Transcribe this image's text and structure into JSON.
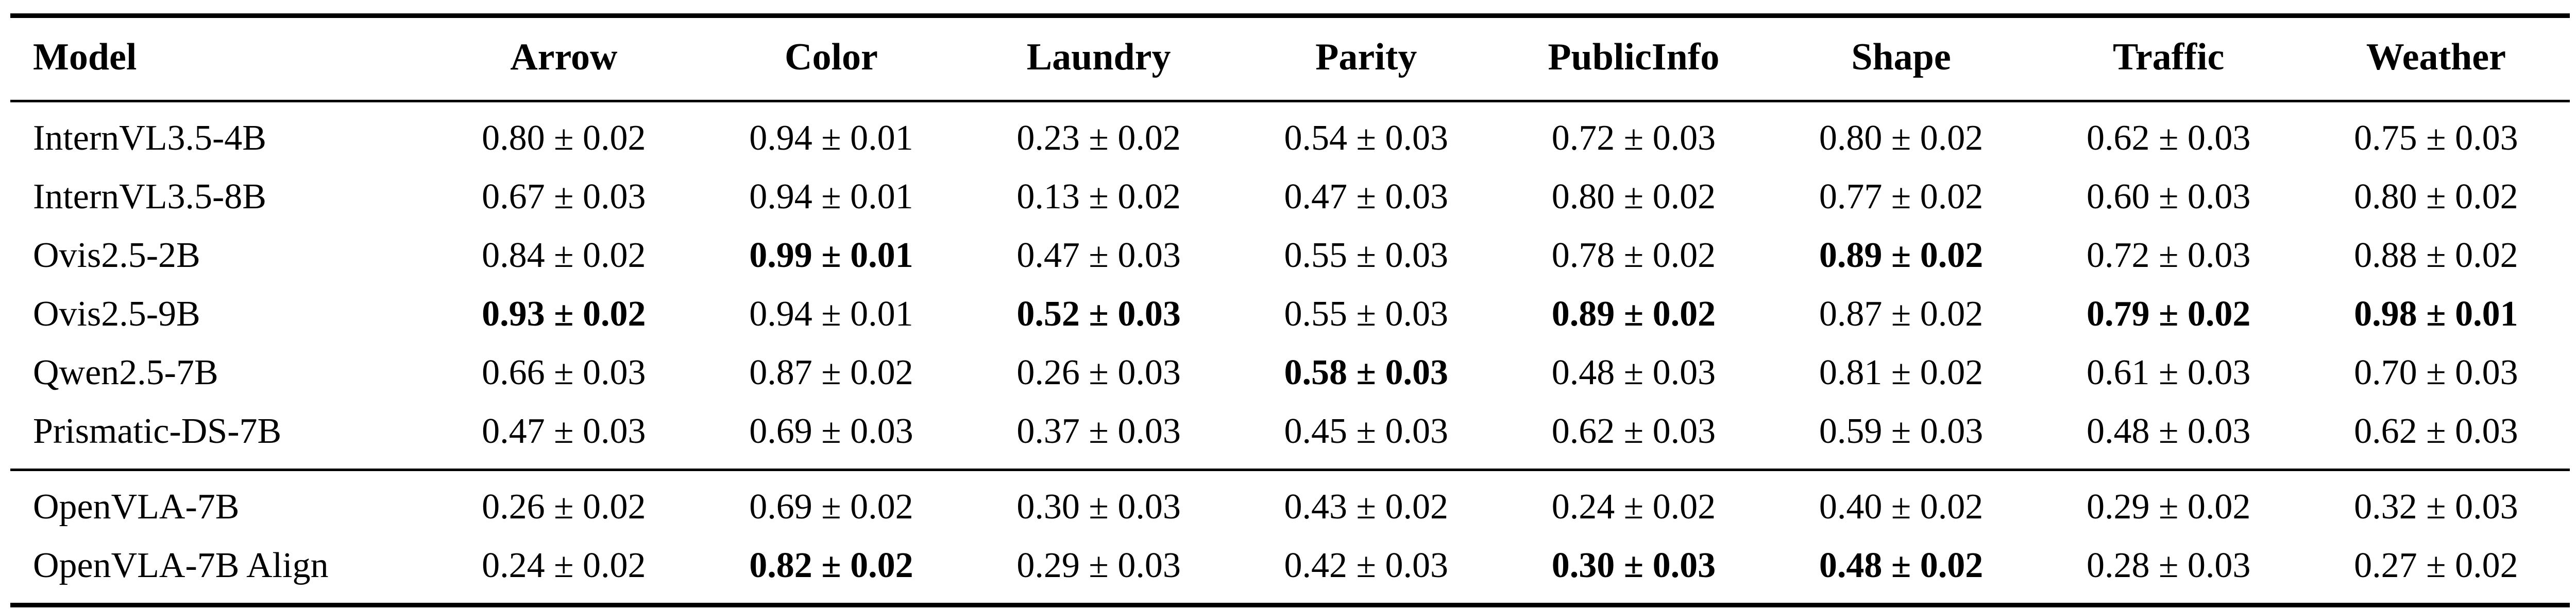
{
  "colors": {
    "text": "#000000",
    "background": "#ffffff",
    "rule": "#000000"
  },
  "table": {
    "columns": [
      "Model",
      "Arrow",
      "Color",
      "Laundry",
      "Parity",
      "PublicInfo",
      "Shape",
      "Traffic",
      "Weather"
    ],
    "groups": [
      {
        "rows": [
          {
            "model": "InternVL3.5-4B",
            "values": [
              {
                "v": "0.80 ± 0.02",
                "b": false
              },
              {
                "v": "0.94 ± 0.01",
                "b": false
              },
              {
                "v": "0.23 ± 0.02",
                "b": false
              },
              {
                "v": "0.54 ± 0.03",
                "b": false
              },
              {
                "v": "0.72 ± 0.03",
                "b": false
              },
              {
                "v": "0.80 ± 0.02",
                "b": false
              },
              {
                "v": "0.62 ± 0.03",
                "b": false
              },
              {
                "v": "0.75 ± 0.03",
                "b": false
              }
            ]
          },
          {
            "model": "InternVL3.5-8B",
            "values": [
              {
                "v": "0.67 ± 0.03",
                "b": false
              },
              {
                "v": "0.94 ± 0.01",
                "b": false
              },
              {
                "v": "0.13 ± 0.02",
                "b": false
              },
              {
                "v": "0.47 ± 0.03",
                "b": false
              },
              {
                "v": "0.80 ± 0.02",
                "b": false
              },
              {
                "v": "0.77 ± 0.02",
                "b": false
              },
              {
                "v": "0.60 ± 0.03",
                "b": false
              },
              {
                "v": "0.80 ± 0.02",
                "b": false
              }
            ]
          },
          {
            "model": "Ovis2.5-2B",
            "values": [
              {
                "v": "0.84 ± 0.02",
                "b": false
              },
              {
                "v": "0.99 ± 0.01",
                "b": true
              },
              {
                "v": "0.47 ± 0.03",
                "b": false
              },
              {
                "v": "0.55 ± 0.03",
                "b": false
              },
              {
                "v": "0.78 ± 0.02",
                "b": false
              },
              {
                "v": "0.89 ± 0.02",
                "b": true
              },
              {
                "v": "0.72 ± 0.03",
                "b": false
              },
              {
                "v": "0.88 ± 0.02",
                "b": false
              }
            ]
          },
          {
            "model": "Ovis2.5-9B",
            "values": [
              {
                "v": "0.93 ± 0.02",
                "b": true
              },
              {
                "v": "0.94 ± 0.01",
                "b": false
              },
              {
                "v": "0.52 ± 0.03",
                "b": true
              },
              {
                "v": "0.55 ± 0.03",
                "b": false
              },
              {
                "v": "0.89 ± 0.02",
                "b": true
              },
              {
                "v": "0.87 ± 0.02",
                "b": false
              },
              {
                "v": "0.79 ± 0.02",
                "b": true
              },
              {
                "v": "0.98 ± 0.01",
                "b": true
              }
            ]
          },
          {
            "model": "Qwen2.5-7B",
            "values": [
              {
                "v": "0.66 ± 0.03",
                "b": false
              },
              {
                "v": "0.87 ± 0.02",
                "b": false
              },
              {
                "v": "0.26 ± 0.03",
                "b": false
              },
              {
                "v": "0.58 ± 0.03",
                "b": true
              },
              {
                "v": "0.48 ± 0.03",
                "b": false
              },
              {
                "v": "0.81 ± 0.02",
                "b": false
              },
              {
                "v": "0.61 ± 0.03",
                "b": false
              },
              {
                "v": "0.70 ± 0.03",
                "b": false
              }
            ]
          },
          {
            "model": "Prismatic-DS-7B",
            "values": [
              {
                "v": "0.47 ± 0.03",
                "b": false
              },
              {
                "v": "0.69 ± 0.03",
                "b": false
              },
              {
                "v": "0.37 ± 0.03",
                "b": false
              },
              {
                "v": "0.45 ± 0.03",
                "b": false
              },
              {
                "v": "0.62 ± 0.03",
                "b": false
              },
              {
                "v": "0.59 ± 0.03",
                "b": false
              },
              {
                "v": "0.48 ± 0.03",
                "b": false
              },
              {
                "v": "0.62 ± 0.03",
                "b": false
              }
            ]
          }
        ]
      },
      {
        "rows": [
          {
            "model": "OpenVLA-7B",
            "values": [
              {
                "v": "0.26 ± 0.02",
                "b": false
              },
              {
                "v": "0.69 ± 0.02",
                "b": false
              },
              {
                "v": "0.30 ± 0.03",
                "b": false
              },
              {
                "v": "0.43 ± 0.02",
                "b": false
              },
              {
                "v": "0.24 ± 0.02",
                "b": false
              },
              {
                "v": "0.40 ± 0.02",
                "b": false
              },
              {
                "v": "0.29 ± 0.02",
                "b": false
              },
              {
                "v": "0.32 ± 0.03",
                "b": false
              }
            ]
          },
          {
            "model": "OpenVLA-7B Align",
            "values": [
              {
                "v": "0.24 ± 0.02",
                "b": false
              },
              {
                "v": "0.82 ± 0.02",
                "b": true
              },
              {
                "v": "0.29 ± 0.03",
                "b": false
              },
              {
                "v": "0.42 ± 0.03",
                "b": false
              },
              {
                "v": "0.30 ± 0.03",
                "b": true
              },
              {
                "v": "0.48 ± 0.02",
                "b": true
              },
              {
                "v": "0.28 ± 0.03",
                "b": false
              },
              {
                "v": "0.27 ± 0.02",
                "b": false
              }
            ]
          }
        ]
      }
    ]
  }
}
